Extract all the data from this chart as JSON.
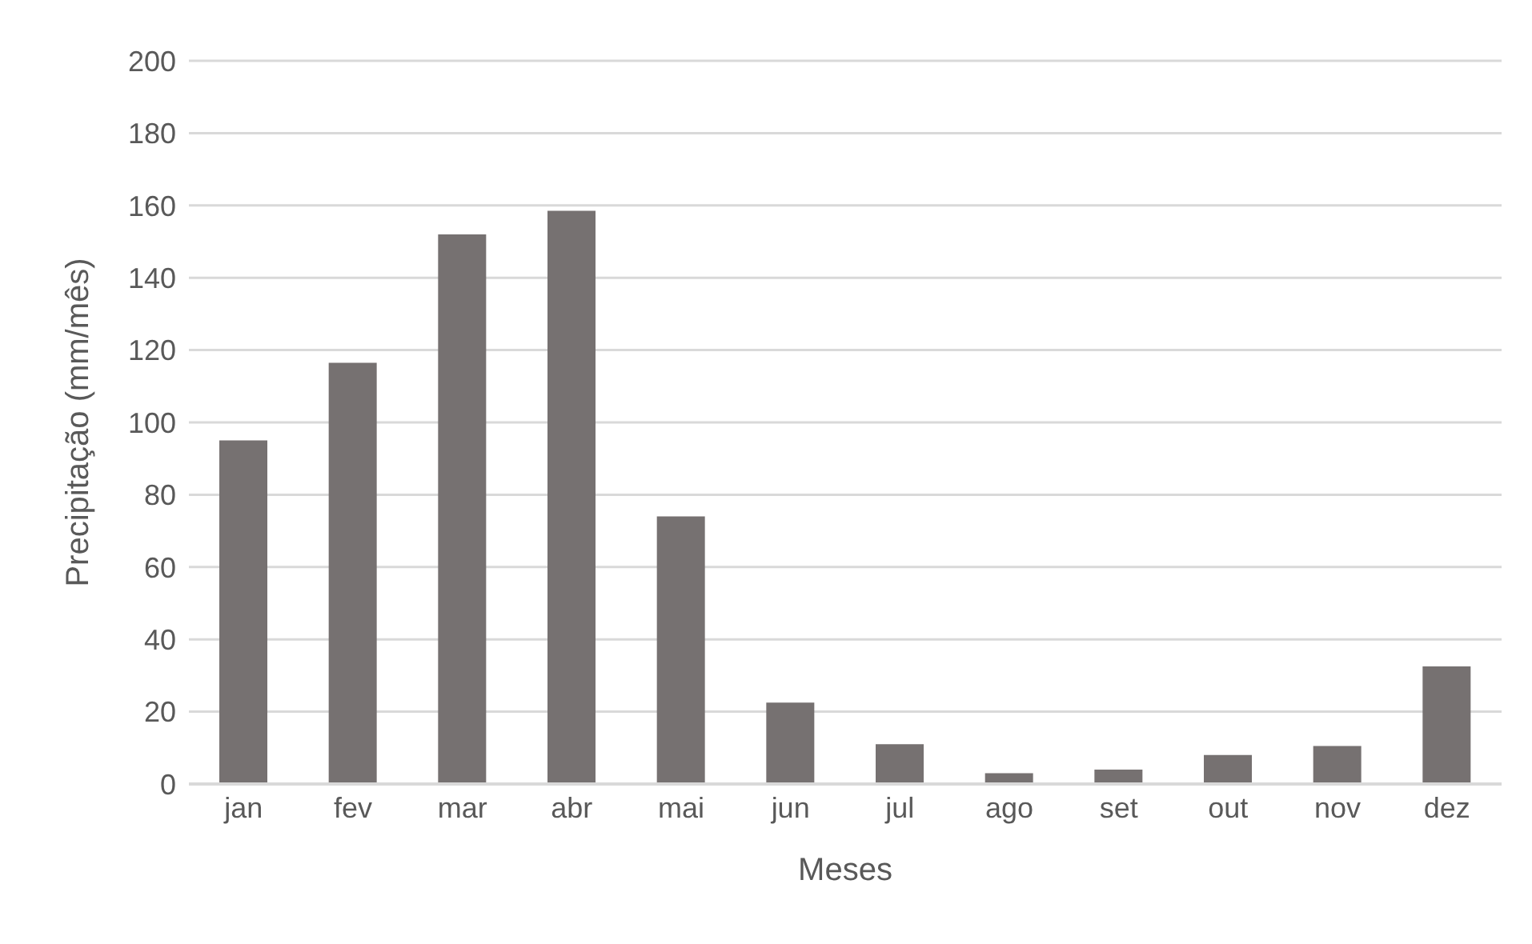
{
  "chart_data": {
    "type": "bar",
    "xlabel": "Meses",
    "ylabel": "Precipitação (mm/mês)",
    "categories": [
      "jan",
      "fev",
      "mar",
      "abr",
      "mai",
      "jun",
      "jul",
      "ago",
      "set",
      "out",
      "nov",
      "dez"
    ],
    "values": [
      95,
      116.5,
      152,
      158.5,
      74,
      22.5,
      11,
      3,
      4,
      8,
      10.5,
      32.5
    ],
    "color": "#767171",
    "ylim": [
      0,
      200
    ],
    "yticks": [
      0,
      20,
      40,
      60,
      80,
      100,
      120,
      140,
      160,
      180,
      200
    ],
    "grid": "y",
    "legend": false
  }
}
